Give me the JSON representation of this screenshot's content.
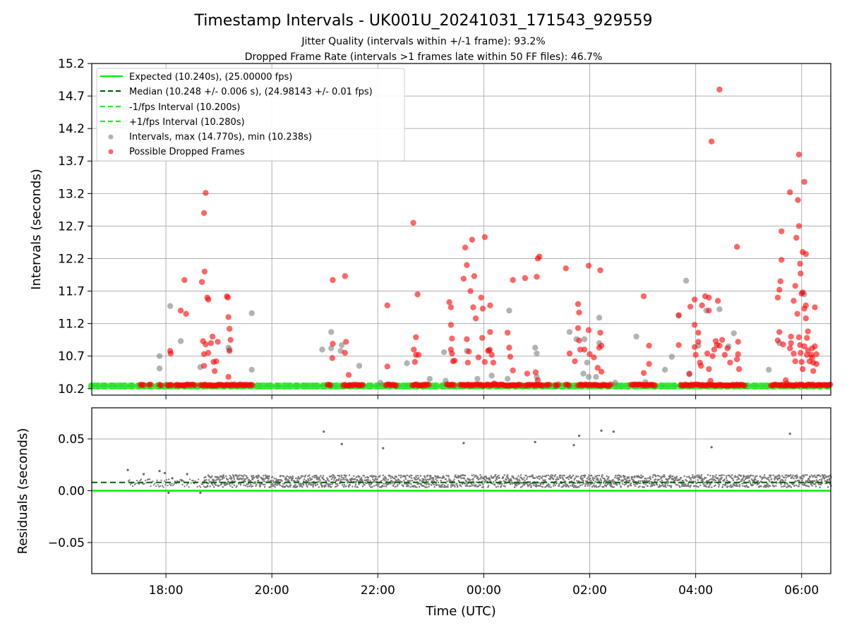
{
  "chart_data": [
    {
      "type": "scatter",
      "title": "Timestamp Intervals - UK001U_20241031_171543_929559",
      "subtitle_1": "Jitter Quality (intervals within +/-1 frame): 93.2%",
      "subtitle_2": "Dropped Frame Rate (intervals >1 frames late within 50 FF files): 46.7%",
      "ylabel": "Intervals (seconds)",
      "ylim": [
        10.1,
        15.2
      ],
      "y_ticks": [
        "10.2",
        "10.7",
        "11.2",
        "11.7",
        "12.2",
        "12.7",
        "13.2",
        "13.7",
        "14.2",
        "14.7",
        "15.2"
      ],
      "y_tick_values": [
        10.2,
        10.7,
        11.2,
        11.7,
        12.2,
        12.7,
        13.2,
        13.7,
        14.2,
        14.7,
        15.2
      ],
      "xlim_hours": [
        16.6,
        30.55
      ],
      "x_tick_hours": [
        18,
        20,
        22,
        24,
        26,
        28,
        30
      ],
      "grid": true,
      "legend_position": "top-left",
      "legend": [
        "Expected (10.240s), (25.00000 fps)",
        "Median (10.248 +/- 0.006 s), (24.98143 +/- 0.01 fps)",
        "-1/fps Interval (10.200s)",
        "+1/fps Interval (10.280s)",
        "Intervals, max (14.770s), min (10.238s)",
        "Possible Dropped Frames"
      ],
      "reference_lines": {
        "expected": 10.24,
        "median": 10.248,
        "minus_1fps": 10.2,
        "plus_1fps": 10.28
      },
      "colors": {
        "expected": "#00ee00",
        "median": "#006400",
        "intervals": "#808080",
        "dropped": "#ff0000"
      },
      "dropped_frames": [
        [
          18.08,
          10.78
        ],
        [
          18.09,
          10.74
        ],
        [
          18.28,
          11.4
        ],
        [
          18.35,
          11.87
        ],
        [
          18.38,
          11.35
        ],
        [
          18.68,
          11.84
        ],
        [
          18.72,
          12.9
        ],
        [
          18.73,
          12.0
        ],
        [
          18.75,
          13.21
        ],
        [
          18.78,
          11.6
        ],
        [
          18.8,
          11.57
        ],
        [
          18.7,
          10.93
        ],
        [
          18.72,
          10.73
        ],
        [
          18.75,
          10.88
        ],
        [
          18.8,
          10.75
        ],
        [
          18.85,
          10.9
        ],
        [
          18.88,
          11.0
        ],
        [
          18.9,
          10.61
        ],
        [
          18.92,
          10.47
        ],
        [
          18.95,
          10.62
        ],
        [
          18.98,
          10.92
        ],
        [
          19.15,
          11.62
        ],
        [
          19.17,
          11.6
        ],
        [
          19.18,
          11.3
        ],
        [
          19.2,
          11.12
        ],
        [
          19.22,
          10.95
        ],
        [
          19.2,
          10.78
        ],
        [
          19.18,
          10.38
        ],
        [
          18.72,
          10.55
        ],
        [
          21.15,
          11.87
        ],
        [
          21.38,
          11.93
        ],
        [
          21.15,
          10.89
        ],
        [
          21.14,
          10.67
        ],
        [
          21.38,
          10.75
        ],
        [
          21.4,
          10.92
        ],
        [
          21.45,
          10.41
        ],
        [
          22.18,
          11.48
        ],
        [
          22.18,
          10.54
        ],
        [
          22.67,
          12.75
        ],
        [
          22.72,
          10.99
        ],
        [
          22.75,
          11.65
        ],
        [
          22.68,
          10.8
        ],
        [
          22.72,
          10.72
        ],
        [
          22.7,
          10.61
        ],
        [
          22.77,
          10.72
        ],
        [
          23.35,
          11.53
        ],
        [
          23.38,
          11.45
        ],
        [
          23.38,
          11.18
        ],
        [
          23.4,
          10.97
        ],
        [
          23.38,
          10.8
        ],
        [
          23.42,
          10.62
        ],
        [
          23.45,
          10.63
        ],
        [
          23.4,
          10.74
        ],
        [
          23.65,
          12.37
        ],
        [
          23.68,
          12.1
        ],
        [
          23.62,
          11.89
        ],
        [
          23.78,
          12.49
        ],
        [
          23.75,
          11.7
        ],
        [
          23.82,
          11.93
        ],
        [
          23.68,
          10.96
        ],
        [
          23.72,
          10.77
        ],
        [
          23.7,
          10.6
        ],
        [
          23.8,
          11.45
        ],
        [
          23.85,
          11.28
        ],
        [
          23.9,
          10.68
        ],
        [
          23.95,
          11.6
        ],
        [
          23.97,
          10.98
        ],
        [
          23.98,
          11.43
        ],
        [
          24.02,
          12.53
        ],
        [
          24.1,
          10.79
        ],
        [
          24.12,
          11.07
        ],
        [
          24.12,
          11.48
        ],
        [
          24.15,
          10.72
        ],
        [
          24.18,
          10.6
        ],
        [
          24.02,
          10.61
        ],
        [
          24.08,
          10.78
        ],
        [
          24.2,
          10.28
        ],
        [
          24.45,
          11.06
        ],
        [
          24.48,
          10.83
        ],
        [
          24.5,
          10.69
        ],
        [
          24.55,
          11.87
        ],
        [
          24.78,
          11.9
        ],
        [
          24.55,
          10.48
        ],
        [
          24.82,
          10.43
        ],
        [
          25.0,
          11.92
        ],
        [
          25.02,
          12.2
        ],
        [
          25.05,
          12.23
        ],
        [
          24.98,
          10.45
        ],
        [
          25.02,
          10.33
        ],
        [
          25.55,
          12.05
        ],
        [
          25.62,
          10.74
        ],
        [
          25.78,
          11.5
        ],
        [
          25.8,
          11.37
        ],
        [
          25.78,
          11.13
        ],
        [
          25.8,
          10.94
        ],
        [
          25.82,
          10.8
        ],
        [
          25.72,
          10.62
        ],
        [
          25.98,
          12.09
        ],
        [
          25.9,
          10.8
        ],
        [
          25.98,
          11.1
        ],
        [
          26.0,
          10.73
        ],
        [
          26.08,
          10.68
        ],
        [
          26.18,
          10.83
        ],
        [
          26.2,
          11.06
        ],
        [
          26.2,
          12.02
        ],
        [
          26.22,
          10.86
        ],
        [
          26.15,
          10.52
        ],
        [
          26.22,
          10.46
        ],
        [
          27.02,
          11.62
        ],
        [
          27.02,
          10.44
        ],
        [
          27.12,
          10.86
        ],
        [
          27.12,
          10.58
        ],
        [
          27.68,
          11.33
        ],
        [
          27.68,
          10.87
        ],
        [
          27.88,
          10.43
        ],
        [
          27.9,
          11.46
        ],
        [
          27.98,
          11.57
        ],
        [
          27.98,
          11.18
        ],
        [
          28.0,
          10.72
        ],
        [
          27.98,
          10.84
        ],
        [
          28.05,
          11.06
        ],
        [
          28.05,
          10.92
        ],
        [
          28.08,
          10.6
        ],
        [
          28.1,
          10.55
        ],
        [
          28.12,
          11.48
        ],
        [
          28.18,
          11.62
        ],
        [
          28.25,
          11.6
        ],
        [
          28.25,
          11.4
        ],
        [
          28.3,
          14.0
        ],
        [
          28.42,
          11.55
        ],
        [
          28.45,
          14.8
        ],
        [
          28.45,
          10.86
        ],
        [
          28.5,
          10.95
        ],
        [
          28.22,
          10.74
        ],
        [
          28.25,
          10.5
        ],
        [
          28.28,
          10.32
        ],
        [
          28.32,
          10.7
        ],
        [
          28.35,
          10.8
        ],
        [
          28.4,
          10.87
        ],
        [
          28.55,
          10.72
        ],
        [
          28.6,
          10.82
        ],
        [
          28.65,
          10.6
        ],
        [
          28.38,
          10.93
        ],
        [
          28.78,
          12.38
        ],
        [
          28.78,
          10.65
        ],
        [
          28.8,
          10.92
        ],
        [
          28.8,
          10.73
        ],
        [
          28.82,
          10.5
        ],
        [
          29.55,
          11.6
        ],
        [
          29.6,
          11.85
        ],
        [
          29.58,
          11.72
        ],
        [
          29.62,
          12.62
        ],
        [
          29.62,
          12.18
        ],
        [
          29.58,
          11.07
        ],
        [
          29.65,
          10.88
        ],
        [
          29.55,
          10.94
        ],
        [
          29.7,
          10.33
        ],
        [
          29.72,
          10.28
        ],
        [
          29.78,
          13.22
        ],
        [
          29.78,
          10.82
        ],
        [
          29.8,
          11.0
        ],
        [
          29.85,
          10.74
        ],
        [
          29.88,
          10.62
        ],
        [
          29.9,
          12.52
        ],
        [
          29.92,
          11.35
        ],
        [
          29.93,
          13.1
        ],
        [
          29.95,
          13.8
        ],
        [
          29.95,
          12.7
        ],
        [
          29.97,
          12.12
        ],
        [
          29.98,
          11.97
        ],
        [
          30.0,
          11.66
        ],
        [
          30.02,
          12.3
        ],
        [
          30.02,
          11.68
        ],
        [
          30.05,
          11.43
        ],
        [
          30.05,
          13.38
        ],
        [
          30.08,
          11.48
        ],
        [
          30.08,
          11.28
        ],
        [
          30.08,
          12.27
        ],
        [
          30.1,
          10.98
        ],
        [
          30.12,
          11.08
        ],
        [
          30.12,
          10.79
        ],
        [
          30.1,
          10.72
        ],
        [
          30.15,
          10.62
        ],
        [
          29.95,
          10.99
        ],
        [
          29.97,
          10.87
        ],
        [
          29.98,
          10.75
        ],
        [
          30.0,
          10.61
        ],
        [
          30.02,
          10.5
        ],
        [
          30.05,
          10.85
        ],
        [
          30.18,
          10.72
        ],
        [
          30.2,
          10.82
        ],
        [
          30.2,
          10.68
        ],
        [
          30.22,
          10.6
        ],
        [
          30.25,
          11.45
        ],
        [
          30.25,
          10.85
        ],
        [
          30.28,
          10.73
        ],
        [
          30.28,
          10.58
        ],
        [
          30.22,
          10.47
        ],
        [
          29.8,
          10.9
        ],
        [
          29.85,
          11.55
        ],
        [
          29.88,
          11.78
        ]
      ],
      "intervals_gray": [
        [
          17.88,
          10.51
        ],
        [
          17.88,
          10.7
        ],
        [
          18.08,
          11.47
        ],
        [
          18.28,
          10.93
        ],
        [
          18.65,
          10.53
        ],
        [
          19.18,
          10.83
        ],
        [
          19.2,
          10.8
        ],
        [
          19.62,
          11.36
        ],
        [
          19.62,
          10.49
        ],
        [
          20.95,
          10.8
        ],
        [
          21.12,
          11.07
        ],
        [
          21.12,
          10.82
        ],
        [
          21.32,
          10.87
        ],
        [
          21.3,
          10.78
        ],
        [
          21.65,
          10.55
        ],
        [
          22.05,
          10.29
        ],
        [
          22.55,
          10.59
        ],
        [
          22.98,
          10.35
        ],
        [
          23.25,
          10.76
        ],
        [
          23.28,
          10.32
        ],
        [
          23.68,
          10.78
        ],
        [
          23.88,
          10.35
        ],
        [
          24.15,
          10.4
        ],
        [
          24.12,
          10.8
        ],
        [
          24.48,
          11.4
        ],
        [
          24.45,
          10.35
        ],
        [
          24.97,
          10.83
        ],
        [
          25.0,
          10.74
        ],
        [
          25.0,
          10.38
        ],
        [
          25.62,
          11.07
        ],
        [
          25.75,
          10.96
        ],
        [
          25.9,
          10.96
        ],
        [
          25.88,
          10.43
        ],
        [
          25.95,
          10.6
        ],
        [
          25.98,
          10.38
        ],
        [
          26.12,
          10.38
        ],
        [
          26.18,
          11.29
        ],
        [
          26.18,
          10.9
        ],
        [
          26.48,
          10.29
        ],
        [
          26.88,
          11.0
        ],
        [
          27.05,
          10.3
        ],
        [
          27.42,
          10.49
        ],
        [
          27.55,
          10.69
        ],
        [
          27.68,
          11.32
        ],
        [
          27.82,
          11.86
        ],
        [
          27.88,
          10.42
        ],
        [
          28.05,
          10.86
        ],
        [
          28.2,
          11.4
        ],
        [
          28.45,
          11.42
        ],
        [
          28.62,
          10.85
        ],
        [
          28.72,
          11.05
        ],
        [
          29.38,
          10.49
        ],
        [
          29.58,
          10.9
        ],
        [
          30.05,
          11.65
        ]
      ],
      "dense_dropped_segments": [
        [
          17.52,
          17.58
        ],
        [
          17.68,
          17.72
        ],
        [
          17.88,
          17.92
        ],
        [
          18.02,
          18.12
        ],
        [
          18.18,
          18.55
        ],
        [
          18.65,
          19.65
        ],
        [
          21.05,
          21.12
        ],
        [
          21.35,
          21.72
        ],
        [
          22.15,
          22.35
        ],
        [
          22.65,
          22.98
        ],
        [
          23.3,
          23.45
        ],
        [
          23.55,
          24.45
        ],
        [
          24.48,
          24.72
        ],
        [
          24.78,
          25.12
        ],
        [
          25.18,
          25.25
        ],
        [
          25.35,
          25.42
        ],
        [
          25.55,
          25.62
        ],
        [
          25.78,
          26.42
        ],
        [
          26.78,
          27.25
        ],
        [
          27.72,
          28.95
        ],
        [
          29.42,
          30.55
        ]
      ]
    },
    {
      "type": "scatter",
      "xlabel": "Time (UTC)",
      "ylabel": "Residuals (seconds)",
      "ylim": [
        -0.08,
        0.08
      ],
      "y_ticks": [
        "0.05",
        "0.00",
        "−0.05"
      ],
      "y_tick_values": [
        0.05,
        0.0,
        -0.05
      ],
      "x_ticks": [
        "18:00",
        "20:00",
        "22:00",
        "00:00",
        "02:00",
        "04:00",
        "06:00"
      ],
      "x_tick_hours": [
        18,
        20,
        22,
        24,
        26,
        28,
        30
      ],
      "xlim_hours": [
        16.6,
        30.55
      ],
      "grid": true,
      "expected_residual": 0.0,
      "median_residual": 0.008,
      "band": [
        0.004,
        0.016
      ],
      "outliers": [
        [
          17.28,
          0.02
        ],
        [
          17.58,
          0.016
        ],
        [
          17.88,
          0.019
        ],
        [
          17.98,
          0.017
        ],
        [
          18.12,
          0.012
        ],
        [
          18.3,
          0.01
        ],
        [
          18.4,
          0.016
        ],
        [
          18.05,
          -0.002
        ],
        [
          18.65,
          -0.002
        ],
        [
          20.98,
          0.057
        ],
        [
          21.32,
          0.045
        ],
        [
          22.1,
          0.041
        ],
        [
          23.62,
          0.046
        ],
        [
          24.97,
          0.047
        ],
        [
          25.7,
          0.044
        ],
        [
          25.8,
          0.053
        ],
        [
          26.22,
          0.058
        ],
        [
          26.45,
          0.057
        ],
        [
          28.3,
          0.042
        ],
        [
          29.78,
          0.055
        ]
      ]
    }
  ]
}
